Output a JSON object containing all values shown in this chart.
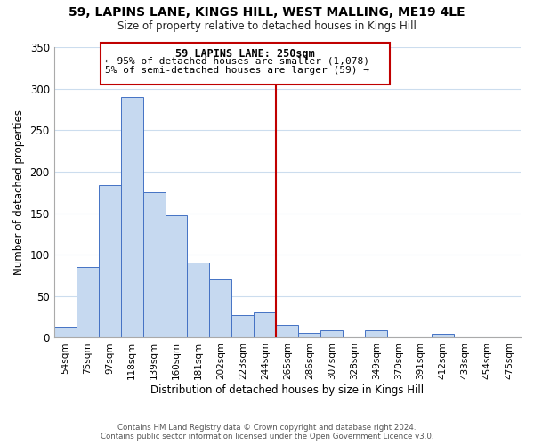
{
  "title": "59, LAPINS LANE, KINGS HILL, WEST MALLING, ME19 4LE",
  "subtitle": "Size of property relative to detached houses in Kings Hill",
  "xlabel": "Distribution of detached houses by size in Kings Hill",
  "ylabel": "Number of detached properties",
  "bin_labels": [
    "54sqm",
    "75sqm",
    "97sqm",
    "118sqm",
    "139sqm",
    "160sqm",
    "181sqm",
    "202sqm",
    "223sqm",
    "244sqm",
    "265sqm",
    "286sqm",
    "307sqm",
    "328sqm",
    "349sqm",
    "370sqm",
    "391sqm",
    "412sqm",
    "433sqm",
    "454sqm",
    "475sqm"
  ],
  "bar_heights": [
    13,
    85,
    184,
    290,
    175,
    147,
    91,
    70,
    27,
    30,
    15,
    6,
    9,
    0,
    9,
    0,
    0,
    5,
    0,
    0,
    0
  ],
  "bar_color": "#c6d9f0",
  "bar_edge_color": "#4472c4",
  "property_line_x": 9.5,
  "property_line_color": "#c00000",
  "annotation_title": "59 LAPINS LANE: 250sqm",
  "annotation_line1": "← 95% of detached houses are smaller (1,078)",
  "annotation_line2": "5% of semi-detached houses are larger (59) →",
  "ylim": [
    0,
    350
  ],
  "yticks": [
    0,
    50,
    100,
    150,
    200,
    250,
    300,
    350
  ],
  "footer_line1": "Contains HM Land Registry data © Crown copyright and database right 2024.",
  "footer_line2": "Contains public sector information licensed under the Open Government Licence v3.0.",
  "background_color": "#ffffff",
  "grid_color": "#ccddee"
}
